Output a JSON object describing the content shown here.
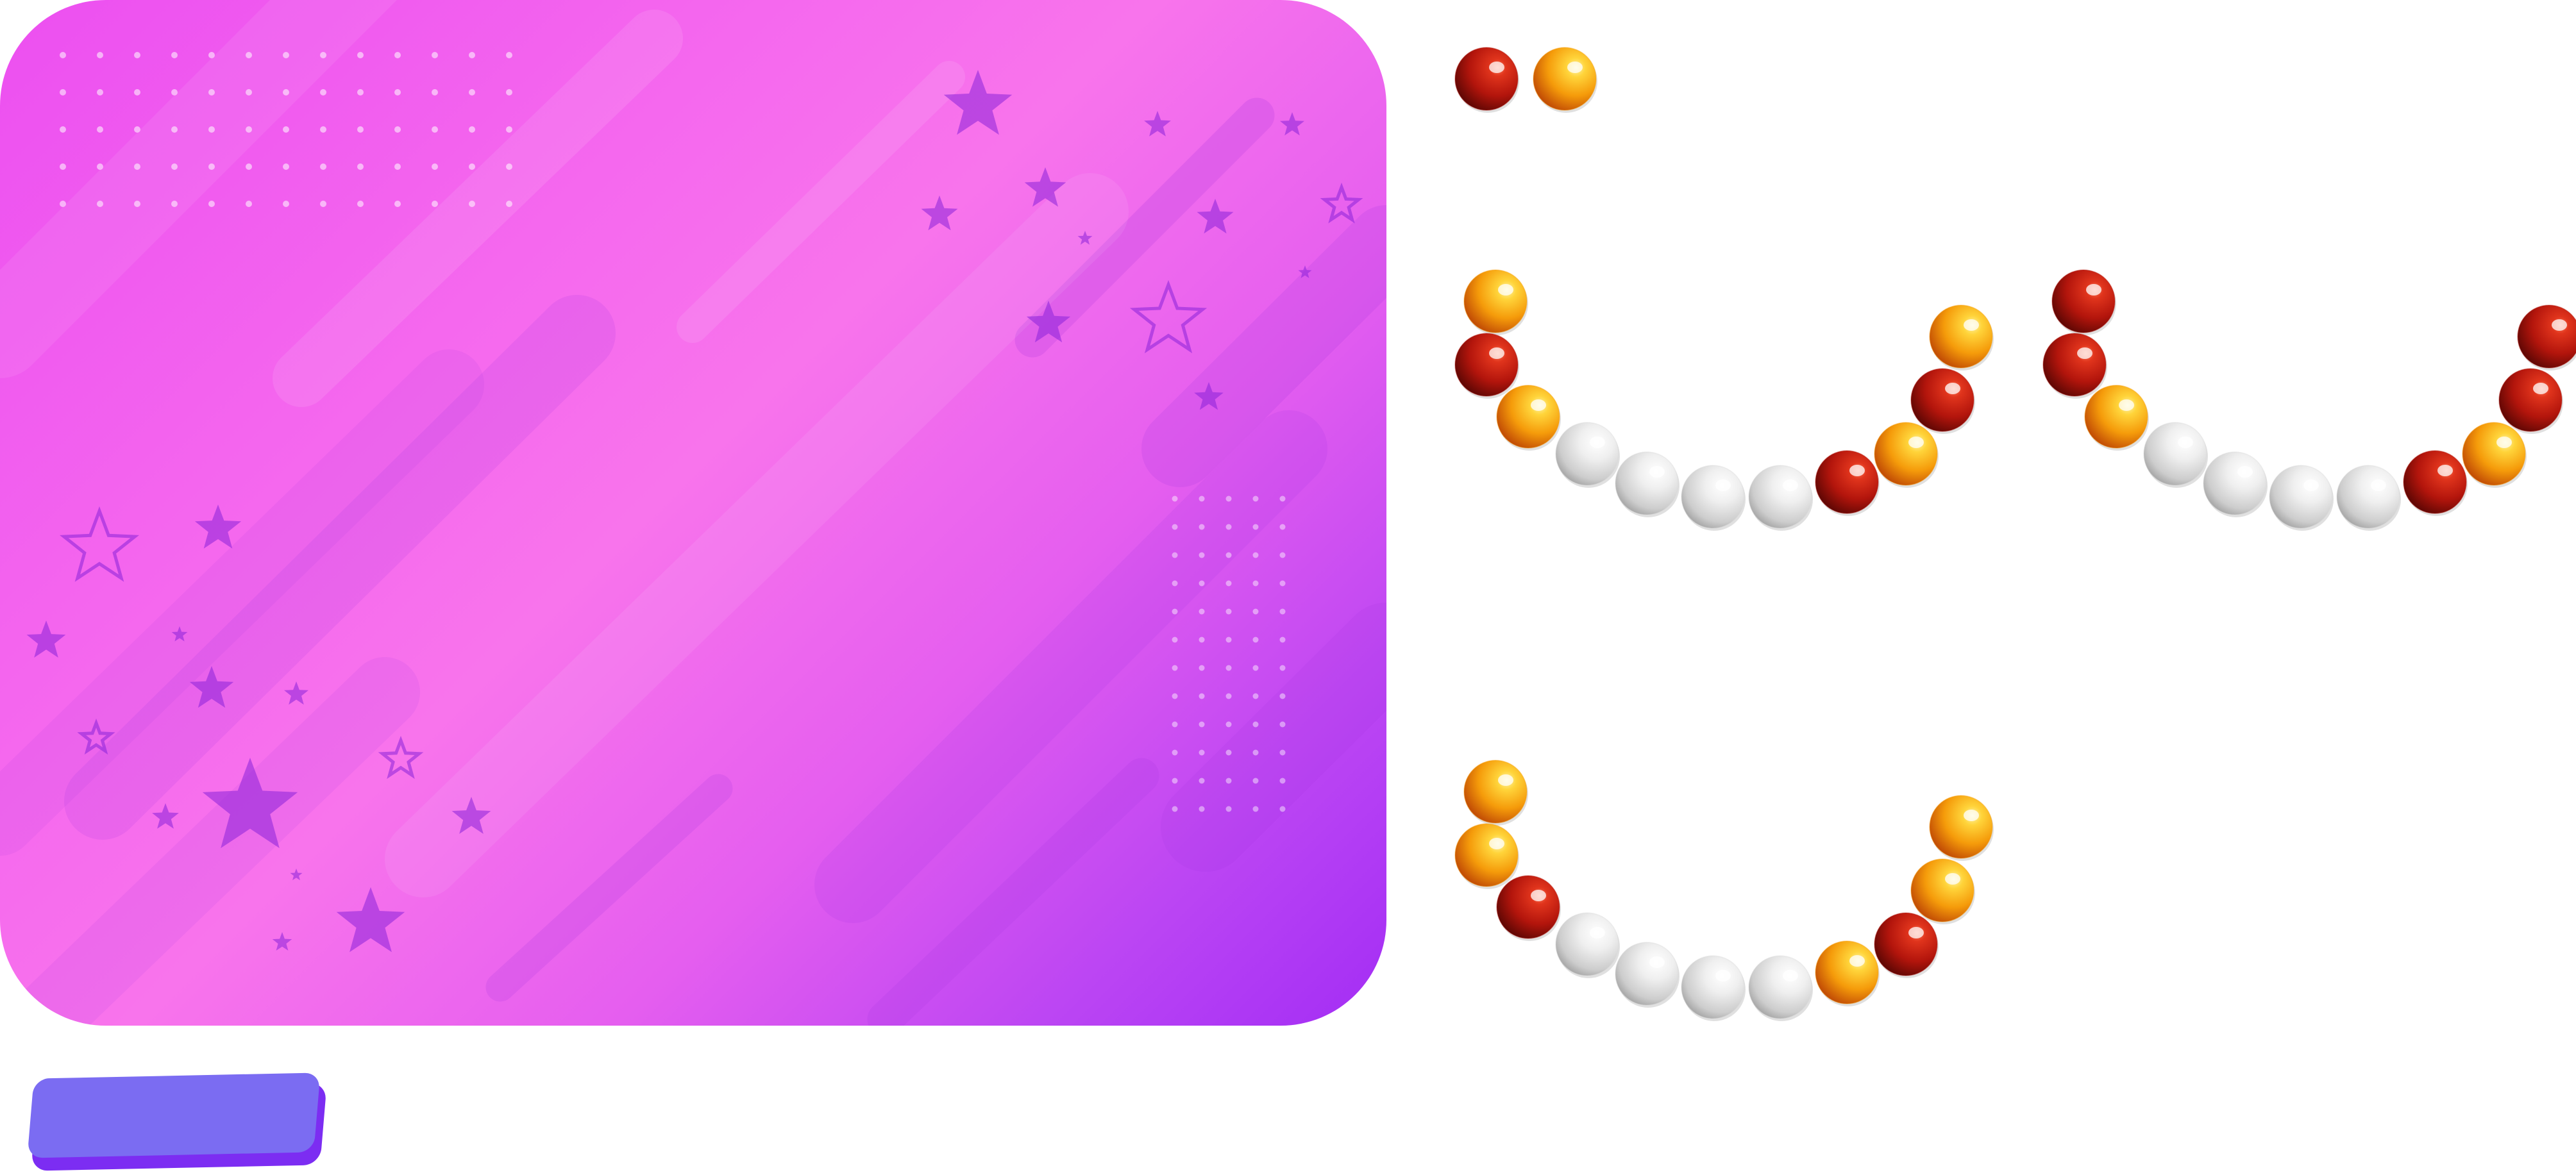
{
  "board": {
    "gradient": [
      "#ec4ff0",
      "#f874ec",
      "#a32df5"
    ],
    "decoration": [
      "dot-grid-icon",
      "star-icon",
      "diagonal-stripe-icon"
    ]
  },
  "start_button": {
    "label": "",
    "colors": {
      "face": "#7b6cf2",
      "shadow": "#7c2df2"
    }
  },
  "bead_colors": {
    "red": "#b3150c",
    "orange": "#f59b0a",
    "white": "#d6d6d6"
  },
  "target_pattern": [
    "red",
    "orange"
  ],
  "options": [
    {
      "id": "option-a",
      "beads": [
        "orange",
        "red",
        "orange",
        "white",
        "white",
        "white",
        "white",
        "red",
        "orange",
        "red",
        "orange"
      ]
    },
    {
      "id": "option-b",
      "beads": [
        "red",
        "red",
        "orange",
        "white",
        "white",
        "white",
        "white",
        "red",
        "orange",
        "red",
        "red"
      ]
    },
    {
      "id": "option-c",
      "beads": [
        "orange",
        "orange",
        "red",
        "white",
        "white",
        "white",
        "white",
        "orange",
        "red",
        "orange",
        "orange"
      ]
    }
  ]
}
